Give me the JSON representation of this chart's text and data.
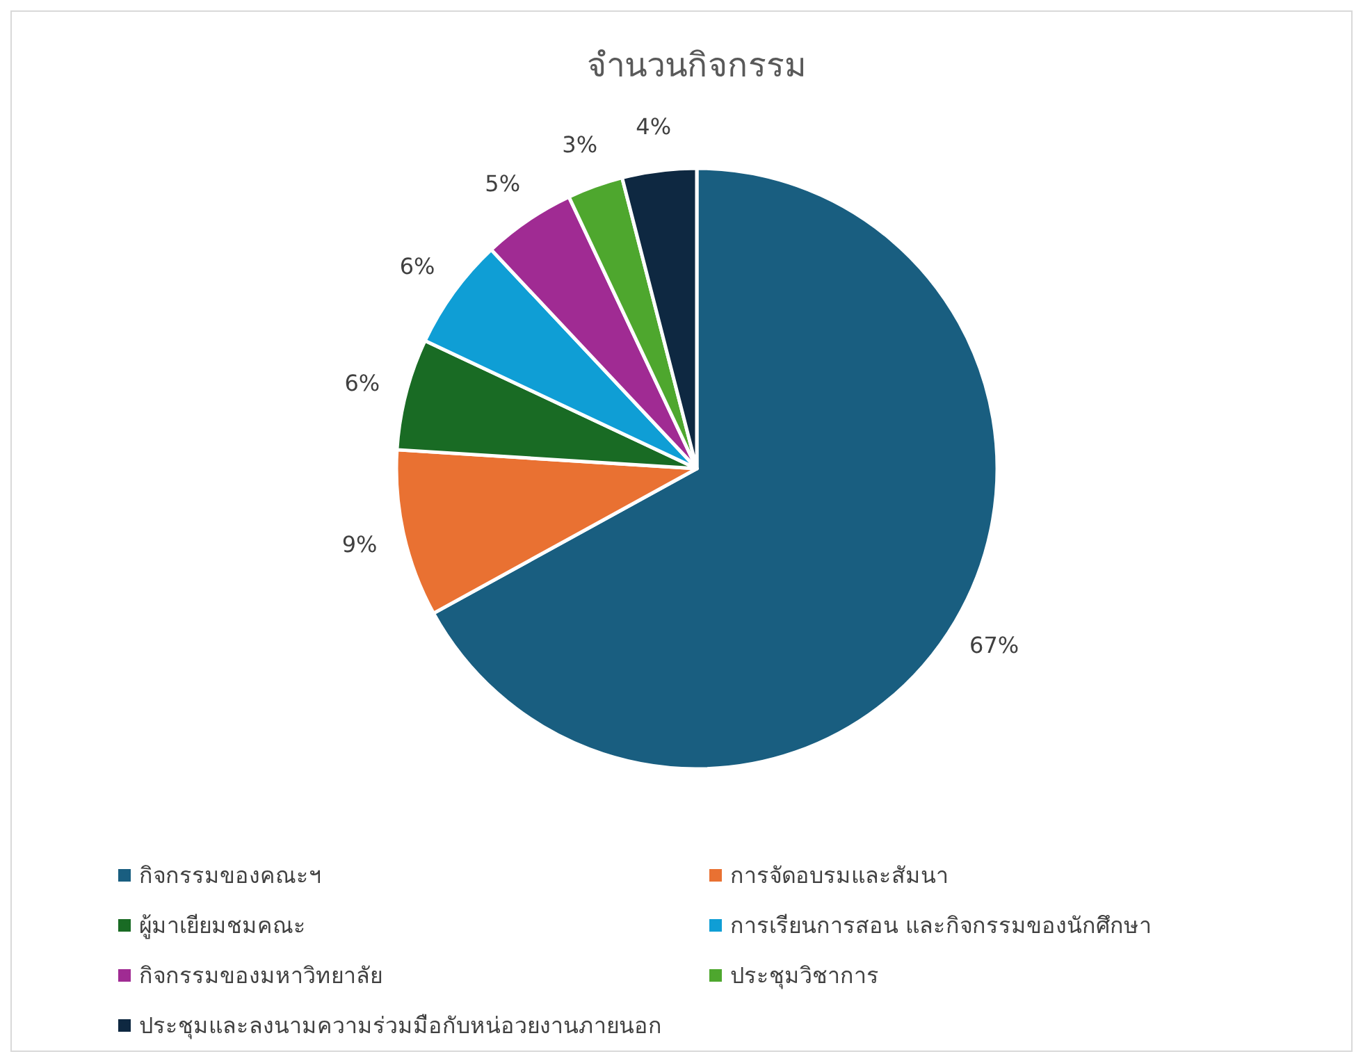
{
  "chart_data": {
    "type": "pie",
    "title": "จำนวนกิจกรรม",
    "categories": [
      "กิจกรรมของคณะฯ",
      "การจัดอบรมและสัมนา",
      "ผู้มาเยียมชมคณะ",
      "การเรียนการสอน และกิจกรรมของนักศึกษา",
      "กิจกรรมของมหาวิทยาลัย",
      "ประชุมวิชาการ",
      "ประชุมและลงนามความร่วมมือกับหน่อวยงานภายนอก"
    ],
    "values": [
      67,
      9,
      6,
      6,
      5,
      3,
      4
    ],
    "colors": [
      "#195e80",
      "#e97132",
      "#196b24",
      "#0f9ed5",
      "#a02b93",
      "#4ea72e",
      "#0e2841"
    ],
    "value_labels": [
      "67%",
      "9%",
      "6%",
      "6%",
      "5%",
      "3%",
      "4%"
    ],
    "legend": "bottom"
  }
}
